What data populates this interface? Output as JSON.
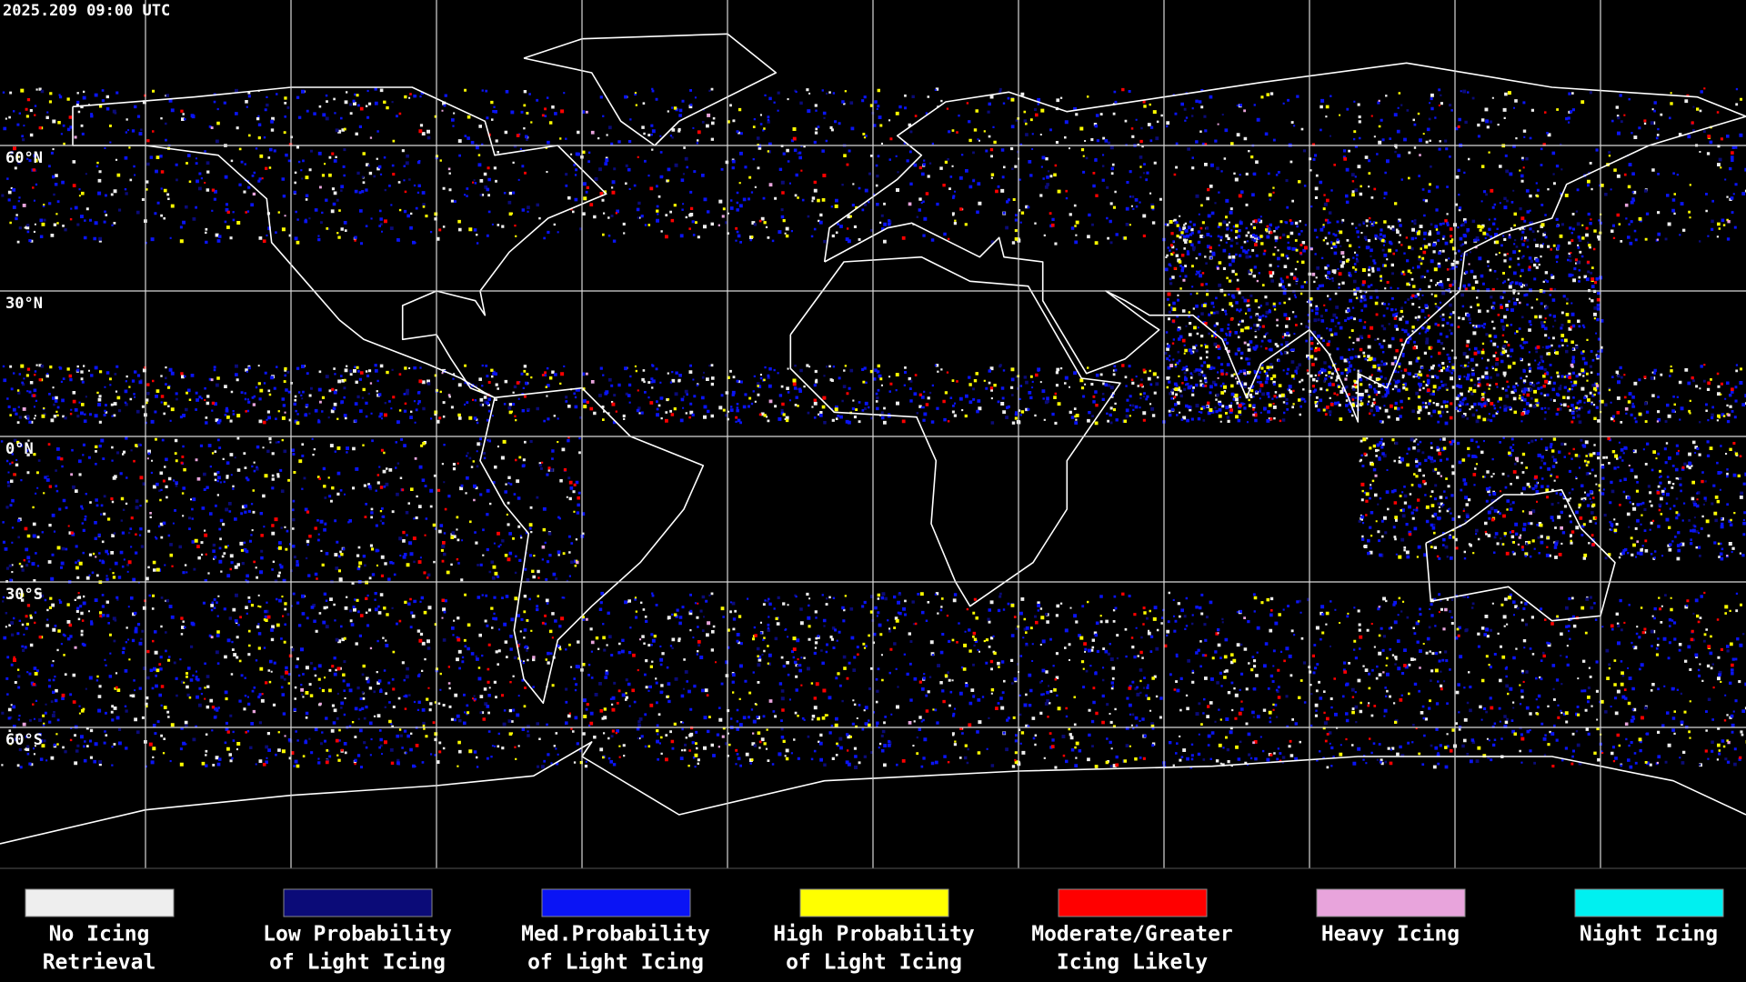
{
  "header": {
    "timestamp": "2025.209 09:00 UTC"
  },
  "map": {
    "latitude_labels": [
      "60°N",
      "30°N",
      "0°N",
      "30°S",
      "60°S"
    ]
  },
  "legend": [
    {
      "label": [
        "No Icing",
        "Retrieval"
      ],
      "color": "#eeeeee"
    },
    {
      "label": [
        "Low Probability",
        "of Light Icing"
      ],
      "color": "#0b0b78"
    },
    {
      "label": [
        "Med.Probability",
        "of Light Icing"
      ],
      "color": "#0a14f5"
    },
    {
      "label": [
        "High Probability",
        "of Light Icing"
      ],
      "color": "#ffff00"
    },
    {
      "label": [
        "Moderate/Greater",
        "Icing Likely"
      ],
      "color": "#ff0000"
    },
    {
      "label": [
        "Heavy Icing",
        ""
      ],
      "color": "#e8a4dc"
    },
    {
      "label": [
        "Night Icing",
        ""
      ],
      "color": "#00f0f0"
    }
  ]
}
